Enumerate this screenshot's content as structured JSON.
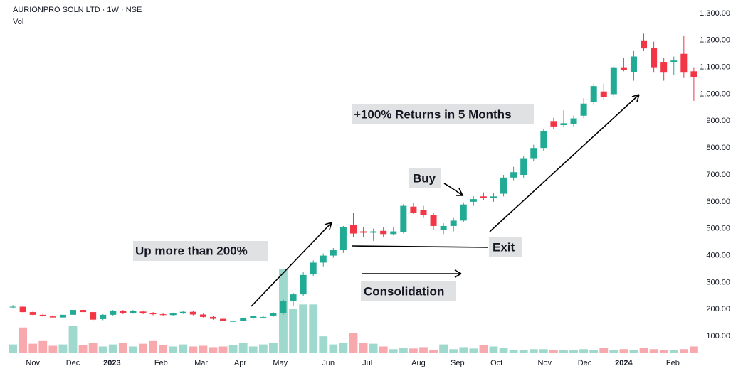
{
  "chart_data": {
    "type": "candlestick",
    "title": "AURIONPRO SOLN LTD · 1W · NSE",
    "volume_label": "Vol",
    "x": [
      0,
      1,
      2,
      3,
      4,
      5,
      6,
      7,
      8,
      9,
      10,
      11,
      12,
      13,
      14,
      15,
      16,
      17,
      18,
      19,
      20,
      21,
      22,
      23,
      24,
      25,
      26,
      27,
      28,
      29,
      30,
      31,
      32,
      33,
      34,
      35,
      36,
      37,
      38,
      39,
      40,
      41,
      42,
      43,
      44,
      45,
      46,
      47,
      48,
      49,
      50,
      51,
      52,
      53,
      54,
      55,
      56,
      57,
      58,
      59,
      60,
      61,
      62,
      63,
      64,
      65,
      66,
      67,
      68
    ],
    "ohlc": [
      [
        208,
        216,
        203,
        210
      ],
      [
        210,
        214,
        188,
        190
      ],
      [
        190,
        195,
        178,
        180
      ],
      [
        180,
        186,
        172,
        175
      ],
      [
        174,
        180,
        168,
        170
      ],
      [
        170,
        182,
        166,
        180
      ],
      [
        180,
        205,
        176,
        198
      ],
      [
        198,
        204,
        186,
        190
      ],
      [
        190,
        192,
        158,
        162
      ],
      [
        164,
        182,
        160,
        180
      ],
      [
        180,
        198,
        176,
        194
      ],
      [
        194,
        198,
        182,
        186
      ],
      [
        186,
        198,
        184,
        194
      ],
      [
        192,
        196,
        182,
        186
      ],
      [
        186,
        190,
        178,
        182
      ],
      [
        182,
        186,
        175,
        179
      ],
      [
        179,
        188,
        176,
        185
      ],
      [
        185,
        194,
        183,
        191
      ],
      [
        191,
        194,
        178,
        181
      ],
      [
        181,
        184,
        170,
        172
      ],
      [
        172,
        176,
        162,
        165
      ],
      [
        165,
        168,
        156,
        158
      ],
      [
        154,
        162,
        150,
        158
      ],
      [
        158,
        170,
        155,
        168
      ],
      [
        168,
        178,
        164,
        175
      ],
      [
        170,
        178,
        166,
        172
      ],
      [
        175,
        190,
        172,
        186
      ],
      [
        186,
        240,
        180,
        232
      ],
      [
        232,
        262,
        214,
        256
      ],
      [
        256,
        338,
        250,
        328
      ],
      [
        330,
        382,
        322,
        374
      ],
      [
        374,
        408,
        360,
        400
      ],
      [
        400,
        428,
        392,
        420
      ],
      [
        420,
        510,
        410,
        505
      ],
      [
        515,
        560,
        470,
        482
      ],
      [
        490,
        505,
        470,
        485
      ],
      [
        485,
        500,
        455,
        490
      ],
      [
        492,
        505,
        470,
        480
      ],
      [
        480,
        505,
        475,
        490
      ],
      [
        488,
        592,
        482,
        585
      ],
      [
        582,
        595,
        555,
        560
      ],
      [
        570,
        585,
        540,
        550
      ],
      [
        550,
        560,
        495,
        510
      ],
      [
        495,
        520,
        480,
        510
      ],
      [
        510,
        540,
        490,
        530
      ],
      [
        530,
        598,
        525,
        590
      ],
      [
        600,
        620,
        585,
        610
      ],
      [
        620,
        635,
        605,
        615
      ],
      [
        615,
        632,
        600,
        620
      ],
      [
        630,
        700,
        620,
        690
      ],
      [
        690,
        730,
        680,
        710
      ],
      [
        700,
        770,
        690,
        762
      ],
      [
        762,
        812,
        750,
        800
      ],
      [
        800,
        870,
        790,
        862
      ],
      [
        900,
        912,
        870,
        880
      ],
      [
        885,
        940,
        878,
        892
      ],
      [
        890,
        920,
        880,
        910
      ],
      [
        920,
        985,
        912,
        965
      ],
      [
        970,
        1038,
        960,
        1030
      ],
      [
        1010,
        1040,
        980,
        990
      ],
      [
        1000,
        1105,
        990,
        1100
      ],
      [
        1100,
        1135,
        1085,
        1090
      ],
      [
        1082,
        1160,
        1050,
        1140
      ],
      [
        1200,
        1225,
        1160,
        1170
      ],
      [
        1172,
        1195,
        1080,
        1100
      ],
      [
        1120,
        1135,
        1050,
        1080
      ],
      [
        1120,
        1140,
        1070,
        1125
      ],
      [
        1150,
        1218,
        1060,
        1080
      ],
      [
        1085,
        1100,
        975,
        1062
      ]
    ],
    "volume": [
      13,
      38,
      14,
      18,
      11,
      13,
      40,
      12,
      15,
      10,
      13,
      15,
      10,
      14,
      18,
      12,
      10,
      13,
      10,
      11,
      9,
      10,
      12,
      15,
      10,
      13,
      15,
      124,
      65,
      72,
      72,
      25,
      13,
      15,
      30,
      15,
      14,
      10,
      6,
      8,
      7,
      9,
      5,
      13,
      6,
      9,
      7,
      12,
      10,
      8,
      5,
      5,
      6,
      6,
      5,
      5,
      5,
      6,
      5,
      8,
      5,
      6,
      5,
      8,
      6,
      5,
      5,
      6,
      10
    ],
    "up_color": "#22ab94",
    "down_color": "#f23645",
    "up_volume_color": "#9fd8cc",
    "down_volume_color": "#f7a9ae",
    "xlim": [
      -1,
      69.5
    ],
    "xticks": [
      {
        "value": 2,
        "label": "Nov"
      },
      {
        "value": 6,
        "label": "Dec"
      },
      {
        "value": 9.9,
        "label": "2023"
      },
      {
        "value": 14.8,
        "label": "Feb"
      },
      {
        "value": 18.8,
        "label": "Mar"
      },
      {
        "value": 22.7,
        "label": "Apr"
      },
      {
        "value": 26.7,
        "label": "May"
      },
      {
        "value": 31.5,
        "label": "Jun"
      },
      {
        "value": 35.4,
        "label": "Jul"
      },
      {
        "value": 40.5,
        "label": "Aug"
      },
      {
        "value": 44.4,
        "label": "Sep"
      },
      {
        "value": 48.3,
        "label": "Oct"
      },
      {
        "value": 53.1,
        "label": "Nov"
      },
      {
        "value": 57.1,
        "label": "Dec"
      },
      {
        "value": 61,
        "label": "2024"
      },
      {
        "value": 65.9,
        "label": "Feb"
      }
    ],
    "bold_xticks": [
      "2023",
      "2024"
    ],
    "ylim": [
      37,
      1350
    ],
    "yticks": [
      {
        "value": 100,
        "label": "100.00"
      },
      {
        "value": 200,
        "label": "200.00"
      },
      {
        "value": 300,
        "label": "300.00"
      },
      {
        "value": 400,
        "label": "400.00"
      },
      {
        "value": 500,
        "label": "500.00"
      },
      {
        "value": 600,
        "label": "600.00"
      },
      {
        "value": 700,
        "label": "700.00"
      },
      {
        "value": 800,
        "label": "800.00"
      },
      {
        "value": 900,
        "label": "900.00"
      },
      {
        "value": 1000,
        "label": "1,000.00"
      },
      {
        "value": 1100,
        "label": "1,100.00"
      },
      {
        "value": 1200,
        "label": "1,200.00"
      },
      {
        "value": 1300,
        "label": "1,300.00"
      }
    ],
    "volume_lim": [
      0,
      130
    ],
    "annotations": [
      "+100% Returns in 5 Months",
      "Buy",
      "Up more than 200%",
      "Exit",
      "Consolidation"
    ]
  }
}
